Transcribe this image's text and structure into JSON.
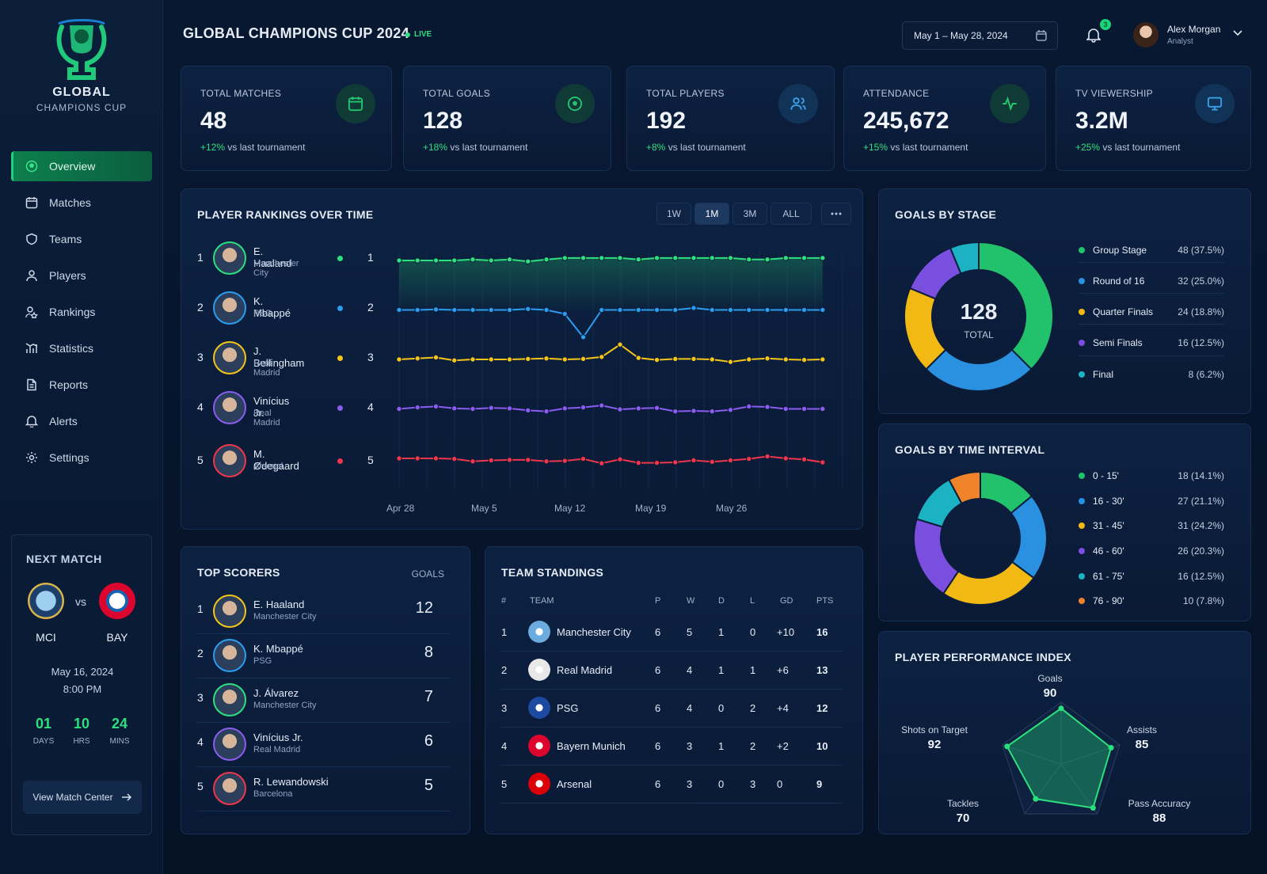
{
  "app": {
    "name_line1": "GLOBAL",
    "name_line2": "CHAMPIONS CUP",
    "title": "GLOBAL CHAMPIONS CUP 2024",
    "live": "LIVE"
  },
  "nav": [
    {
      "label": "Overview",
      "icon": "overview-icon",
      "active": true
    },
    {
      "label": "Matches",
      "icon": "calendar-icon"
    },
    {
      "label": "Teams",
      "icon": "shield-icon"
    },
    {
      "label": "Players",
      "icon": "user-icon"
    },
    {
      "label": "Rankings",
      "icon": "rankings-icon"
    },
    {
      "label": "Statistics",
      "icon": "chart-icon"
    },
    {
      "label": "Reports",
      "icon": "document-icon"
    },
    {
      "label": "Alerts",
      "icon": "bell-icon"
    },
    {
      "label": "Settings",
      "icon": "gear-icon"
    }
  ],
  "header": {
    "date_range": "May 1 – May 28, 2024",
    "notifications": "3",
    "user_name": "Alex Morgan",
    "user_role": "Analyst"
  },
  "kpis": [
    {
      "label": "TOTAL MATCHES",
      "value": "48",
      "change": "+12%",
      "suffix": "vs last tournament",
      "icon": "calendar-icon",
      "color": "#25c46f"
    },
    {
      "label": "TOTAL GOALS",
      "value": "128",
      "change": "+18%",
      "suffix": "vs last tournament",
      "icon": "ball-icon",
      "color": "#25c46f"
    },
    {
      "label": "TOTAL PLAYERS",
      "value": "192",
      "change": "+8%",
      "suffix": "vs last tournament",
      "icon": "users-icon",
      "color": "#3aa0e8"
    },
    {
      "label": "ATTENDANCE",
      "value": "245,672",
      "change": "+15%",
      "suffix": "vs last tournament",
      "icon": "activity-icon",
      "color": "#25c46f"
    },
    {
      "label": "TV VIEWERSHIP",
      "value": "3.2M",
      "change": "+25%",
      "suffix": "vs last tournament",
      "icon": "monitor-icon",
      "color": "#3aa0e8"
    }
  ],
  "rankings": {
    "title": "PLAYER RANKINGS OVER TIME",
    "ranges": [
      "1W",
      "1M",
      "3M",
      "ALL"
    ],
    "active_range": "1M",
    "players": [
      {
        "rank": "1",
        "name": "E. Haaland",
        "team": "Manchester City",
        "color": "#2de07e"
      },
      {
        "rank": "2",
        "name": "K. Mbappé",
        "team": "PSG",
        "color": "#2a9df0"
      },
      {
        "rank": "3",
        "name": "J. Bellingham",
        "team": "Real Madrid",
        "color": "#f5c518"
      },
      {
        "rank": "4",
        "name": "Vinícius Jr.",
        "team": "Real Madrid",
        "color": "#8a5cf0"
      },
      {
        "rank": "5",
        "name": "M. Ødegaard",
        "team": "Arsenal",
        "color": "#f0364a"
      }
    ]
  },
  "chart_data": [
    {
      "type": "line",
      "title": "PLAYER RANKINGS OVER TIME",
      "x_ticks": [
        "Apr 28",
        "May 5",
        "May 12",
        "May 19",
        "May 26"
      ],
      "ylim": [
        1,
        5
      ],
      "y_inverted": true,
      "series": [
        {
          "name": "E. Haaland",
          "values": [
            1,
            1,
            1,
            1,
            0.98,
            1,
            0.98,
            1.02,
            0.98,
            0.95,
            0.95,
            0.95,
            0.95,
            0.98,
            0.95,
            0.95,
            0.95,
            0.95,
            0.95,
            0.98,
            0.98,
            0.95,
            0.95,
            0.95
          ]
        },
        {
          "name": "K. Mbappé",
          "values": [
            2,
            2,
            1.99,
            2,
            2,
            2,
            2,
            1.98,
            2,
            2.08,
            2.55,
            2,
            2,
            2,
            2,
            2,
            1.96,
            2,
            2,
            2,
            2,
            2,
            2,
            2
          ]
        },
        {
          "name": "J. Bellingham",
          "values": [
            3,
            2.98,
            2.96,
            3.02,
            3,
            3,
            3,
            2.99,
            2.98,
            3,
            2.99,
            2.95,
            2.7,
            2.97,
            3.01,
            2.99,
            2.99,
            3,
            3.05,
            3,
            2.98,
            3,
            3.01,
            3
          ]
        },
        {
          "name": "Vinícius Jr.",
          "values": [
            4,
            3.97,
            3.95,
            3.99,
            4,
            3.98,
            3.99,
            4.03,
            4.05,
            3.99,
            3.97,
            3.93,
            4.01,
            3.99,
            3.98,
            4.05,
            4.04,
            4.05,
            4.02,
            3.95,
            3.96,
            4.0,
            4.0,
            4.0
          ]
        },
        {
          "name": "M. Ødegaard",
          "values": [
            5,
            5.0,
            5.0,
            5.01,
            5.06,
            5.04,
            5.03,
            5.03,
            5.06,
            5.05,
            5.01,
            5.1,
            5.02,
            5.09,
            5.09,
            5.08,
            5.04,
            5.07,
            5.04,
            5.01,
            4.96,
            5.0,
            5.02,
            5.08
          ]
        }
      ]
    },
    {
      "type": "pie",
      "title": "GOALS BY STAGE",
      "total": "128",
      "total_label": "TOTAL",
      "categories": [
        "Group Stage",
        "Round of 16",
        "Quarter Finals",
        "Semi Finals",
        "Final"
      ],
      "values": [
        48,
        32,
        24,
        16,
        8
      ],
      "labels": [
        "48 (37.5%)",
        "32 (25.0%)",
        "24 (18.8%)",
        "16 (12.5%)",
        "8 (6.2%)"
      ],
      "colors": [
        "#22c26c",
        "#2a90e0",
        "#f2b813",
        "#7a4fe0",
        "#1bb3c4"
      ]
    },
    {
      "type": "pie",
      "title": "GOALS BY TIME INTERVAL",
      "categories": [
        "0 - 15'",
        "16 - 30'",
        "31 - 45'",
        "46 - 60'",
        "61 - 75'",
        "76 - 90'"
      ],
      "values": [
        18,
        27,
        31,
        26,
        16,
        10
      ],
      "labels": [
        "18 (14.1%)",
        "27 (21.1%)",
        "31 (24.2%)",
        "26 (20.3%)",
        "16 (12.5%)",
        "10 (7.8%)"
      ],
      "colors": [
        "#22c26c",
        "#2a90e0",
        "#f2b813",
        "#7a4fe0",
        "#1bb3c4",
        "#f0822a"
      ]
    },
    {
      "type": "radar",
      "title": "PLAYER PERFORMANCE INDEX",
      "categories": [
        "Goals",
        "Assists",
        "Pass Accuracy",
        "Tackles",
        "Shots on Target"
      ],
      "values": [
        90,
        85,
        88,
        70,
        92
      ],
      "ylim": [
        0,
        100
      ]
    }
  ],
  "next_match": {
    "title": "NEXT MATCH",
    "home": "MCI",
    "away": "BAY",
    "vs": "vs",
    "date": "May 16, 2024",
    "time": "8:00 PM",
    "countdown": [
      {
        "n": "01",
        "u": "DAYS"
      },
      {
        "n": "10",
        "u": "HRS"
      },
      {
        "n": "24",
        "u": "MINS"
      }
    ],
    "cta": "View Match Center"
  },
  "scorers": {
    "title": "TOP SCORERS",
    "col": "GOALS",
    "rows": [
      {
        "rank": "1",
        "name": "E. Haaland",
        "team": "Manchester City",
        "goals": "12",
        "color": "#f5c518"
      },
      {
        "rank": "2",
        "name": "K. Mbappé",
        "team": "PSG",
        "goals": "8",
        "color": "#2a9df0"
      },
      {
        "rank": "3",
        "name": "J. Álvarez",
        "team": "Manchester City",
        "goals": "7",
        "color": "#2de07e"
      },
      {
        "rank": "4",
        "name": "Vinícius Jr.",
        "team": "Real Madrid",
        "goals": "6",
        "color": "#8a5cf0"
      },
      {
        "rank": "5",
        "name": "R. Lewandowski",
        "team": "Barcelona",
        "goals": "5",
        "color": "#f0364a"
      }
    ]
  },
  "standings": {
    "title": "TEAM STANDINGS",
    "cols": [
      "#",
      "TEAM",
      "P",
      "W",
      "D",
      "L",
      "GD",
      "PTS"
    ],
    "rows": [
      {
        "pos": "1",
        "team": "Manchester City",
        "p": "6",
        "w": "5",
        "d": "1",
        "l": "0",
        "gd": "+10",
        "pts": "16",
        "color": "#6cabdd"
      },
      {
        "pos": "2",
        "team": "Real Madrid",
        "p": "6",
        "w": "4",
        "d": "1",
        "l": "1",
        "gd": "+6",
        "pts": "13",
        "color": "#e8e8e8"
      },
      {
        "pos": "3",
        "team": "PSG",
        "p": "6",
        "w": "4",
        "d": "0",
        "l": "2",
        "gd": "+4",
        "pts": "12",
        "color": "#1b4aa0"
      },
      {
        "pos": "4",
        "team": "Bayern Munich",
        "p": "6",
        "w": "3",
        "d": "1",
        "l": "2",
        "gd": "+2",
        "pts": "10",
        "color": "#dc052d"
      },
      {
        "pos": "5",
        "team": "Arsenal",
        "p": "6",
        "w": "3",
        "d": "0",
        "l": "3",
        "gd": "0",
        "pts": "9",
        "color": "#db0007"
      }
    ]
  }
}
